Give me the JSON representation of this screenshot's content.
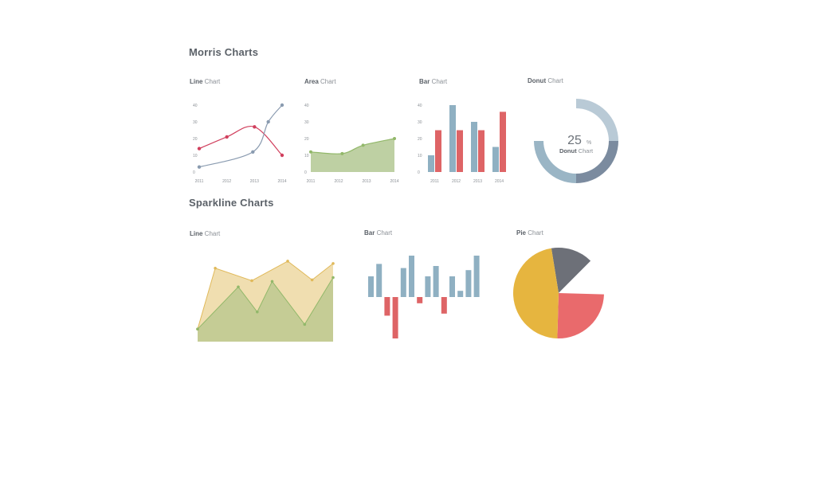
{
  "sections": {
    "morris": "Morris Charts",
    "sparkline": "Sparkline Charts"
  },
  "colors": {
    "red": "#d1405e",
    "gray_blue": "#8a9bb0",
    "green": "#a8c084",
    "green_line": "#92b86a",
    "blue": "#8fb0c2",
    "bar_red": "#de6466",
    "donut_dark": "#7b8b9f",
    "donut_light": "#b9cad6",
    "yellow": "#e4c36f",
    "pie_yellow": "#e6b53f",
    "pie_red": "#e96a6c",
    "pie_gray": "#6d7078"
  },
  "chart_data": [
    {
      "id": "morris-line",
      "type": "line",
      "title_bold": "Line",
      "title_rest": " Chart",
      "x": [
        "2011",
        "2012",
        "2013",
        "2014"
      ],
      "yticks": [
        "0",
        "10",
        "20",
        "30",
        "40"
      ],
      "ylim": [
        0,
        40
      ],
      "series": [
        {
          "values": [
            14,
            21,
            27,
            10
          ],
          "color": "#d1405e"
        },
        {
          "values": [
            3,
            12,
            30,
            40
          ],
          "color": "#8a9bb0",
          "x_positions": [
            0,
            2.33,
            3.0,
            3.6
          ]
        }
      ]
    },
    {
      "id": "morris-area",
      "type": "area",
      "title_bold": "Area",
      "title_rest": " Chart",
      "x": [
        "2011",
        "2012",
        "2013",
        "2014"
      ],
      "yticks": [
        "0",
        "10",
        "20",
        "30",
        "40"
      ],
      "ylim": [
        0,
        40
      ],
      "series": [
        {
          "x_positions": [
            0,
            1.2,
            2.0,
            3.2
          ],
          "values": [
            12,
            11,
            16,
            20
          ],
          "color": "#a8c084"
        }
      ]
    },
    {
      "id": "morris-bar",
      "type": "bar",
      "title_bold": "Bar",
      "title_rest": " Chart",
      "categories": [
        "2011",
        "2012",
        "2013",
        "2014"
      ],
      "yticks": [
        "0",
        "10",
        "20",
        "30",
        "40"
      ],
      "ylim": [
        0,
        40
      ],
      "series": [
        {
          "values": [
            10,
            40,
            30,
            15
          ],
          "color": "#8fb0c2"
        },
        {
          "values": [
            25,
            25,
            25,
            36
          ],
          "color": "#de6466"
        }
      ]
    },
    {
      "id": "morris-donut",
      "type": "pie",
      "title_bold": "Donut",
      "title_rest": " Chart",
      "center_value": "25",
      "center_unit": "%",
      "center_label_bold": "Donut",
      "center_label_rest": " Chart",
      "slices": [
        {
          "value": 25,
          "color": "#b9cad6"
        },
        {
          "value": 25,
          "color": "#7b8b9f"
        },
        {
          "value": 25,
          "color": "#9ab5c5"
        },
        {
          "value": 25,
          "color": "#ffffff"
        }
      ]
    },
    {
      "id": "spark-line",
      "type": "area",
      "title_bold": "Line",
      "title_rest": " Chart",
      "ylim": [
        0,
        10
      ],
      "series": [
        {
          "values": [
            1,
            8.8,
            7.2,
            9.7,
            7.3,
            9.4
          ],
          "color": "#e4c36f"
        },
        {
          "values": [
            1,
            6.4,
            3.2,
            7.1,
            1.6,
            7.6
          ],
          "color": "#a8c084"
        }
      ]
    },
    {
      "id": "spark-bar",
      "type": "bar",
      "title_bold": "Bar",
      "title_rest": " Chart",
      "ylim": [
        -10,
        10
      ],
      "values": [
        5,
        8,
        -4.5,
        -10,
        7,
        10,
        -1.5,
        5,
        7.5,
        -4,
        5,
        1.5,
        6.5,
        10
      ],
      "colors": {
        "positive": "#8fb0c2",
        "negative": "#de6466"
      }
    },
    {
      "id": "spark-pie",
      "type": "pie",
      "title_bold": "Pie",
      "title_rest": " Chart",
      "slices": [
        {
          "value": 47,
          "color": "#e6b53f"
        },
        {
          "value": 25,
          "color": "#e96a6c"
        },
        {
          "value": 15,
          "color": "#6d7078"
        },
        {
          "value": 13,
          "color": "#ffffff"
        }
      ]
    }
  ]
}
